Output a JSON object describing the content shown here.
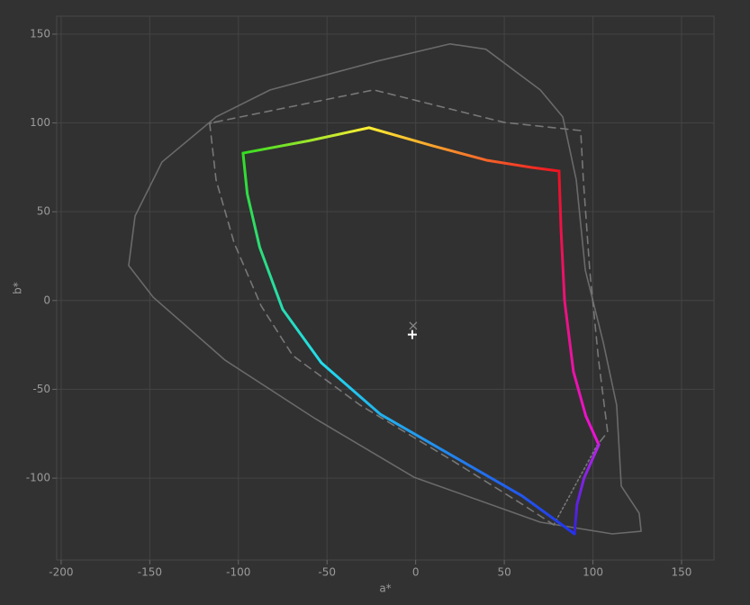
{
  "chart_data": {
    "type": "line",
    "x_label": "a*",
    "y_label": "b*",
    "xlim": [
      -202.5,
      168.3
    ],
    "ylim": [
      -146.1,
      160.1
    ],
    "xticks": [
      -200,
      -150,
      -100,
      -50,
      0,
      50,
      100,
      150
    ],
    "yticks": [
      -100,
      -50,
      0,
      50,
      100,
      150
    ],
    "grid": true,
    "series": [
      {
        "color": "#6a6a6a",
        "dash": "solid",
        "x": [
          -161.9,
          -158.3,
          -143.1,
          -112.6,
          -82.1,
          -21.2,
          19.4,
          39.6,
          70.3,
          83.0,
          90.6,
          95.7,
          105.8,
          113.4,
          116.0,
          126.1,
          127.2,
          110.9,
          70.3,
          -0.9,
          -56.7,
          -107.5,
          -148.1,
          -161.9
        ],
        "values": [
          19.7,
          47.6,
          78.0,
          103.4,
          118.6,
          134.9,
          144.5,
          141.5,
          118.6,
          103.4,
          67.9,
          17.1,
          -23.4,
          -58.9,
          -104.5,
          -119.8,
          -129.9,
          -131.4,
          -124.8,
          -99.5,
          -66.5,
          -33.6,
          1.9,
          19.7
        ]
      },
      {
        "color": "#777777",
        "dash": "dashed",
        "x": [
          -113.0,
          -23.7,
          49.9,
          93.1,
          94.6,
          98.2,
          103.2,
          108.3,
          102.3
        ],
        "values": [
          100.5,
          118.6,
          100.3,
          95.7,
          67.9,
          17.1,
          -33.6,
          -74.1,
          -81.6
        ]
      },
      {
        "color": "#777777",
        "dash": "dashed",
        "x": [
          -116.2,
          -112.6,
          -102.4,
          -87.2,
          -69.4,
          -31.3,
          19.5,
          60.1,
          77.9
        ],
        "values": [
          99.7,
          67.9,
          32.4,
          -3.0,
          -30.9,
          -58.9,
          -89.4,
          -114.7,
          -126.3
        ]
      },
      {
        "color": "#777777",
        "dash": "dotted",
        "x": [
          -116.2,
          -113.0
        ],
        "values": [
          99.7,
          100.5
        ]
      },
      {
        "color": "#777777",
        "dash": "dotted",
        "x": [
          77.9,
          102.3
        ],
        "values": [
          -126.3,
          -81.6
        ]
      },
      {
        "gradient": [
          "#33dd22",
          "#ffee33"
        ],
        "dash": "solid",
        "x": [
          -97.4,
          -60,
          -26.3
        ],
        "values": [
          83,
          90,
          97.3
        ]
      },
      {
        "gradient": [
          "#ffee33",
          "#ee1122"
        ],
        "dash": "solid",
        "x": [
          -26.3,
          10,
          40,
          65,
          80.9
        ],
        "values": [
          97.3,
          87,
          79,
          75,
          72.9
        ]
      },
      {
        "gradient": [
          "#ee1122",
          "#ee11dd"
        ],
        "dash": "solid",
        "x": [
          80.9,
          82,
          84,
          89,
          96,
          103.3
        ],
        "values": [
          72.9,
          40,
          0,
          -40,
          -65,
          -81.2
        ]
      },
      {
        "gradient": [
          "#bb22ee",
          "#3322dd"
        ],
        "dash": "solid",
        "x": [
          103.3,
          95,
          91,
          89.6
        ],
        "values": [
          -81.2,
          -100,
          -115,
          -131.4
        ]
      },
      {
        "gradient": [
          "#2233ee",
          "#22ddee"
        ],
        "dash": "solid",
        "x": [
          89.6,
          60,
          20,
          -20,
          -53.2
        ],
        "values": [
          -131.4,
          -110,
          -87,
          -64,
          -35.1
        ]
      },
      {
        "gradient": [
          "#22ddee",
          "#33dd22"
        ],
        "dash": "solid",
        "x": [
          -53.2,
          -75,
          -88,
          -95,
          -97.4
        ],
        "values": [
          -35.1,
          -5,
          30,
          60,
          83
        ]
      },
      {
        "color": "#888888",
        "marker": "x",
        "x": [
          -1.4
        ],
        "values": [
          -14.2
        ]
      },
      {
        "color": "#ffffff",
        "marker": "+",
        "x": [
          -1.9
        ],
        "values": [
          -19.2
        ]
      }
    ]
  }
}
